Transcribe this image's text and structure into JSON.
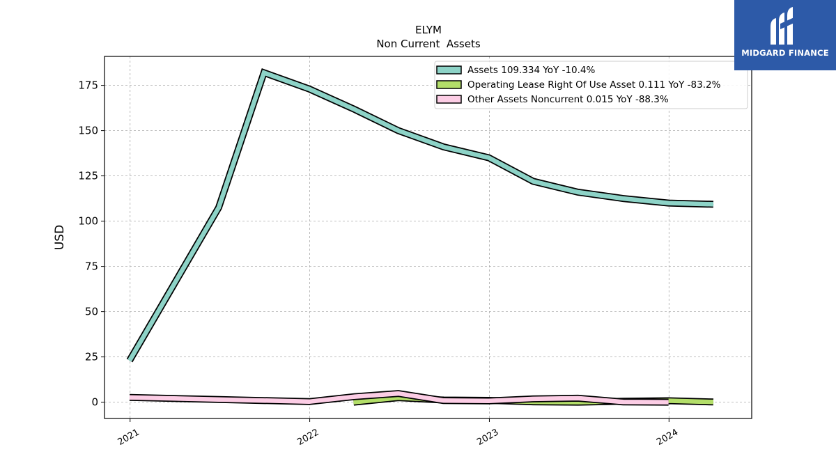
{
  "brand": {
    "name": "MIDGARD FINANCE",
    "bg_color": "#2d5aa8"
  },
  "chart_data": {
    "type": "line",
    "title": "ELYM",
    "subtitle": "Non Current  Assets",
    "xlabel": "",
    "ylabel": "USD",
    "xlim": [
      "2020-11-10",
      "2024-06-17"
    ],
    "ylim": [
      -9,
      191
    ],
    "yticks": [
      0,
      25,
      50,
      75,
      100,
      125,
      150,
      175
    ],
    "xticks": [
      {
        "label": "2021",
        "date": "2021-01-01"
      },
      {
        "label": "2022",
        "date": "2022-01-01"
      },
      {
        "label": "2023",
        "date": "2023-01-01"
      },
      {
        "label": "2024",
        "date": "2024-01-01"
      }
    ],
    "grid": true,
    "legend_position": "top-right",
    "series": [
      {
        "name": "Assets",
        "legend": "Assets  109.334 YoY -10.4%",
        "color": "#8dd3c7",
        "x": [
          "2020-12-31",
          "2021-06-30",
          "2021-09-30",
          "2021-12-31",
          "2022-03-31",
          "2022-06-30",
          "2022-09-30",
          "2022-12-31",
          "2023-03-31",
          "2023-06-30",
          "2023-09-30",
          "2023-12-31",
          "2024-03-31"
        ],
        "values": [
          23,
          107.5,
          182,
          173,
          162,
          150,
          141,
          135,
          122,
          116,
          112.5,
          110,
          109.3
        ]
      },
      {
        "name": "Operating Lease Right Of Use Asset",
        "legend": "Operating Lease Right Of Use Asset  0.111 YoY -83.2%",
        "color": "#b3de69",
        "x": [
          "2022-03-31",
          "2022-06-30",
          "2022-09-30",
          "2022-12-31",
          "2023-03-31",
          "2023-06-30",
          "2023-09-30",
          "2023-12-31",
          "2024-03-31"
        ],
        "values": [
          0,
          2.5,
          1.2,
          1.0,
          0.2,
          0,
          0.5,
          0.8,
          0.111
        ]
      },
      {
        "name": "Other Assets Noncurrent",
        "legend": "Other Assets Noncurrent  0.015 YoY -88.3%",
        "color": "#fccde5",
        "x": [
          "2020-12-31",
          "2021-06-30",
          "2021-12-31",
          "2022-03-31",
          "2022-06-30",
          "2022-09-30",
          "2022-12-31",
          "2023-03-31",
          "2023-06-30",
          "2023-09-30",
          "2023-12-31"
        ],
        "values": [
          2.6,
          1.5,
          0.3,
          3,
          4.8,
          0.9,
          0.7,
          1.8,
          2.2,
          0.1,
          0.015
        ]
      }
    ]
  }
}
